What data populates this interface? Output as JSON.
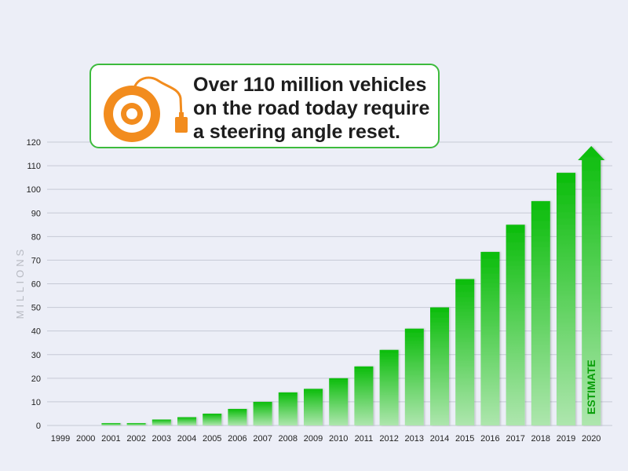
{
  "callout": {
    "text": "Over 110 million vehicles\non the road today require\na steering angle reset.",
    "icon": "steering-angle-sensor-icon",
    "accent_color": "#f28c1e",
    "border_color": "#3dbb3d"
  },
  "chart_data": {
    "type": "bar",
    "title": "",
    "xlabel": "",
    "ylabel": "MILLIONS",
    "ylim": [
      0,
      120
    ],
    "yticks": [
      0,
      10,
      20,
      30,
      40,
      50,
      60,
      70,
      80,
      90,
      100,
      110,
      120
    ],
    "grid": true,
    "categories": [
      "1999",
      "2000",
      "2001",
      "2002",
      "2003",
      "2004",
      "2005",
      "2006",
      "2007",
      "2008",
      "2009",
      "2010",
      "2011",
      "2012",
      "2013",
      "2014",
      "2015",
      "2016",
      "2017",
      "2018",
      "2019",
      "2020"
    ],
    "values": [
      0,
      0,
      1,
      1,
      2.5,
      3.5,
      5,
      7,
      10,
      14,
      15.5,
      20,
      25,
      32,
      41,
      50,
      62,
      73.5,
      85,
      95,
      107,
      117
    ],
    "estimate_label": "ESTIMATE",
    "estimate_category": "2020",
    "bar_color_top": "#0bbd0b",
    "bar_color_bottom": "#aee6ae"
  }
}
